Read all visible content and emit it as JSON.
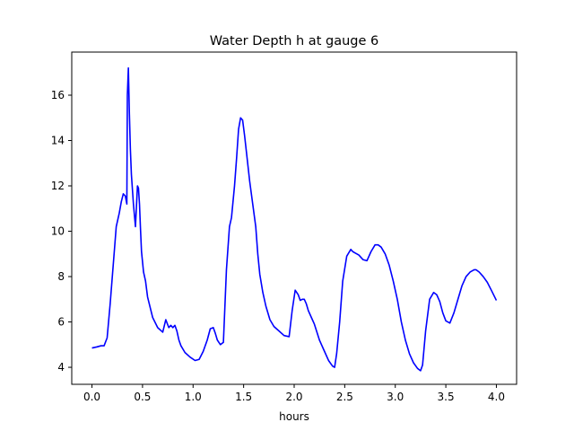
{
  "chart_data": {
    "type": "line",
    "title": "Water Depth h at gauge 6",
    "xlabel": "hours",
    "ylabel": "",
    "xlim": [
      -0.2,
      4.2
    ],
    "ylim": [
      3.25,
      17.9
    ],
    "xticks": [
      0.0,
      0.5,
      1.0,
      1.5,
      2.0,
      2.5,
      3.0,
      3.5,
      4.0
    ],
    "xtick_labels": [
      "0.0",
      "0.5",
      "1.0",
      "1.5",
      "2.0",
      "2.5",
      "3.0",
      "3.5",
      "4.0"
    ],
    "yticks": [
      4,
      6,
      8,
      10,
      12,
      14,
      16
    ],
    "ytick_labels": [
      "4",
      "6",
      "8",
      "10",
      "12",
      "14",
      "16"
    ],
    "grid": false,
    "series": [
      {
        "color": "#0000ff",
        "x": [
          0.0,
          0.05,
          0.09,
          0.12,
          0.15,
          0.18,
          0.21,
          0.24,
          0.27,
          0.29,
          0.31,
          0.33,
          0.345,
          0.35,
          0.36,
          0.37,
          0.38,
          0.39,
          0.41,
          0.43,
          0.45,
          0.46,
          0.47,
          0.48,
          0.49,
          0.51,
          0.53,
          0.55,
          0.6,
          0.65,
          0.7,
          0.73,
          0.76,
          0.78,
          0.8,
          0.82,
          0.84,
          0.86,
          0.88,
          0.92,
          0.97,
          1.02,
          1.06,
          1.1,
          1.14,
          1.17,
          1.2,
          1.22,
          1.24,
          1.27,
          1.3,
          1.33,
          1.36,
          1.38,
          1.41,
          1.43,
          1.45,
          1.47,
          1.49,
          1.51,
          1.53,
          1.56,
          1.59,
          1.62,
          1.64,
          1.66,
          1.69,
          1.72,
          1.76,
          1.8,
          1.85,
          1.9,
          1.95,
          1.98,
          2.01,
          2.04,
          2.06,
          2.08,
          2.1,
          2.12,
          2.14,
          2.17,
          2.2,
          2.25,
          2.3,
          2.34,
          2.38,
          2.4,
          2.42,
          2.45,
          2.48,
          2.52,
          2.56,
          2.58,
          2.6,
          2.64,
          2.68,
          2.72,
          2.76,
          2.8,
          2.83,
          2.86,
          2.9,
          2.94,
          2.98,
          3.02,
          3.06,
          3.1,
          3.14,
          3.18,
          3.22,
          3.25,
          3.27,
          3.3,
          3.34,
          3.38,
          3.41,
          3.44,
          3.47,
          3.5,
          3.54,
          3.58,
          3.62,
          3.66,
          3.7,
          3.74,
          3.78,
          3.8,
          3.83,
          3.87,
          3.91,
          3.95,
          4.0
        ],
        "y": [
          4.85,
          4.9,
          4.95,
          4.95,
          5.3,
          6.8,
          8.5,
          10.2,
          10.8,
          11.3,
          11.65,
          11.55,
          11.2,
          16.0,
          17.2,
          15.2,
          13.6,
          12.5,
          11.2,
          10.2,
          12.0,
          11.9,
          11.2,
          10.1,
          9.1,
          8.2,
          7.8,
          7.1,
          6.2,
          5.75,
          5.55,
          6.1,
          5.75,
          5.85,
          5.75,
          5.85,
          5.6,
          5.2,
          4.95,
          4.65,
          4.45,
          4.3,
          4.35,
          4.7,
          5.2,
          5.7,
          5.75,
          5.5,
          5.2,
          5.0,
          5.1,
          8.3,
          10.2,
          10.6,
          12.0,
          13.2,
          14.5,
          15.0,
          14.9,
          14.2,
          13.4,
          12.2,
          11.2,
          10.2,
          9.0,
          8.1,
          7.3,
          6.7,
          6.1,
          5.8,
          5.6,
          5.4,
          5.35,
          6.5,
          7.4,
          7.2,
          6.95,
          7.0,
          7.0,
          6.8,
          6.5,
          6.2,
          5.9,
          5.2,
          4.7,
          4.3,
          4.05,
          4.0,
          4.6,
          6.0,
          7.8,
          8.9,
          9.2,
          9.1,
          9.05,
          8.95,
          8.75,
          8.7,
          9.1,
          9.4,
          9.4,
          9.3,
          9.0,
          8.5,
          7.8,
          7.0,
          6.0,
          5.2,
          4.6,
          4.2,
          3.95,
          3.85,
          4.1,
          5.6,
          7.0,
          7.3,
          7.2,
          6.9,
          6.4,
          6.05,
          5.95,
          6.4,
          7.0,
          7.6,
          8.0,
          8.2,
          8.3,
          8.3,
          8.2,
          8.0,
          7.75,
          7.4,
          6.95
        ]
      }
    ]
  }
}
